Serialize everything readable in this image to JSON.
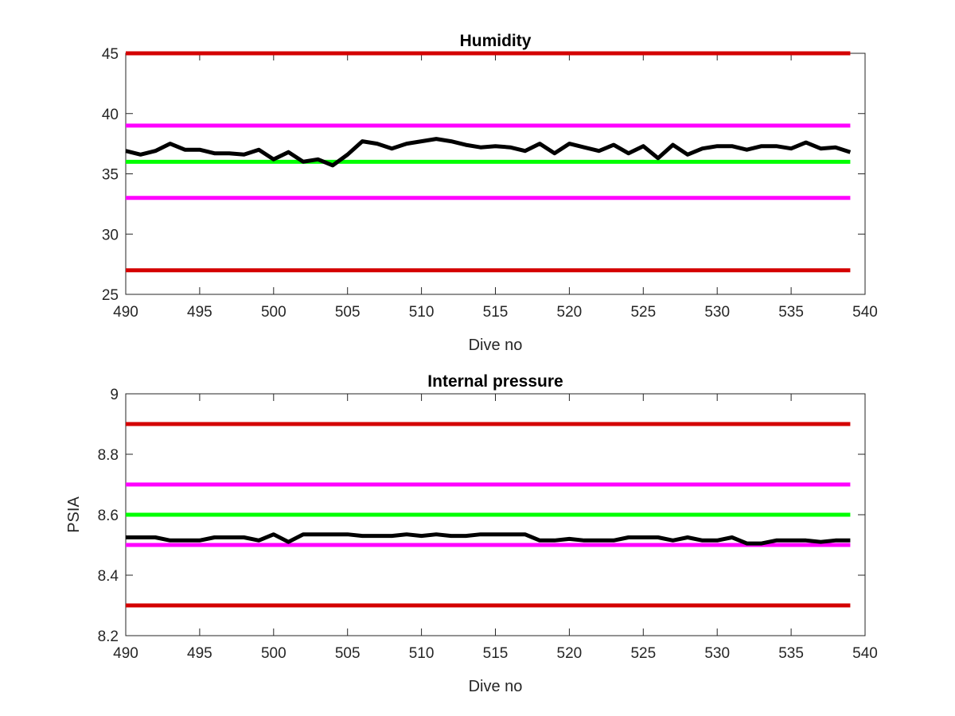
{
  "chart_data": [
    {
      "type": "line",
      "title": "Humidity",
      "xlabel": "Dive no",
      "ylabel": "",
      "xlim": [
        490,
        540
      ],
      "ylim": [
        25,
        45
      ],
      "xticks": [
        "490",
        "495",
        "500",
        "505",
        "510",
        "515",
        "520",
        "525",
        "530",
        "535",
        "540"
      ],
      "yticks": [
        "25",
        "30",
        "35",
        "40",
        "45"
      ],
      "grid": false,
      "reference_lines": [
        {
          "y": 45,
          "color": "#d40000"
        },
        {
          "y": 39,
          "color": "#ff00ff"
        },
        {
          "y": 36,
          "color": "#00ff00"
        },
        {
          "y": 33,
          "color": "#ff00ff"
        },
        {
          "y": 27,
          "color": "#d40000"
        }
      ],
      "series": [
        {
          "color": "#000000",
          "x": [
            490,
            491,
            492,
            493,
            494,
            495,
            496,
            497,
            498,
            499,
            500,
            501,
            502,
            503,
            504,
            505,
            506,
            507,
            508,
            509,
            510,
            511,
            512,
            513,
            514,
            515,
            516,
            517,
            518,
            519,
            520,
            521,
            522,
            523,
            524,
            525,
            526,
            527,
            528,
            529,
            530,
            531,
            532,
            533,
            534,
            535,
            536,
            537,
            538,
            539
          ],
          "values": [
            36.9,
            36.6,
            36.9,
            37.5,
            37.0,
            37.0,
            36.7,
            36.7,
            36.6,
            37.0,
            36.2,
            36.8,
            36.0,
            36.2,
            35.7,
            36.6,
            37.7,
            37.5,
            37.1,
            37.5,
            37.7,
            37.9,
            37.7,
            37.4,
            37.2,
            37.3,
            37.2,
            36.9,
            37.5,
            36.7,
            37.5,
            37.2,
            36.9,
            37.4,
            36.7,
            37.3,
            36.3,
            37.4,
            36.6,
            37.1,
            37.3,
            37.3,
            37.0,
            37.3,
            37.3,
            37.1,
            37.6,
            37.1,
            37.2,
            36.8
          ]
        }
      ]
    },
    {
      "type": "line",
      "title": "Internal pressure",
      "xlabel": "Dive no",
      "ylabel": "PSIA",
      "xlim": [
        490,
        540
      ],
      "ylim": [
        8.2,
        9
      ],
      "xticks": [
        "490",
        "495",
        "500",
        "505",
        "510",
        "515",
        "520",
        "525",
        "530",
        "535",
        "540"
      ],
      "yticks": [
        "8.2",
        "8.4",
        "8.6",
        "8.8",
        "9"
      ],
      "grid": false,
      "reference_lines": [
        {
          "y": 8.9,
          "color": "#d40000"
        },
        {
          "y": 8.7,
          "color": "#ff00ff"
        },
        {
          "y": 8.6,
          "color": "#00ff00"
        },
        {
          "y": 8.5,
          "color": "#ff00ff"
        },
        {
          "y": 8.3,
          "color": "#d40000"
        }
      ],
      "series": [
        {
          "color": "#000000",
          "x": [
            490,
            491,
            492,
            493,
            494,
            495,
            496,
            497,
            498,
            499,
            500,
            501,
            502,
            503,
            504,
            505,
            506,
            507,
            508,
            509,
            510,
            511,
            512,
            513,
            514,
            515,
            516,
            517,
            518,
            519,
            520,
            521,
            522,
            523,
            524,
            525,
            526,
            527,
            528,
            529,
            530,
            531,
            532,
            533,
            534,
            535,
            536,
            537,
            538,
            539
          ],
          "values": [
            8.525,
            8.525,
            8.525,
            8.515,
            8.515,
            8.515,
            8.525,
            8.525,
            8.525,
            8.515,
            8.535,
            8.51,
            8.535,
            8.535,
            8.535,
            8.535,
            8.53,
            8.53,
            8.53,
            8.535,
            8.53,
            8.535,
            8.53,
            8.53,
            8.535,
            8.535,
            8.535,
            8.535,
            8.515,
            8.515,
            8.52,
            8.515,
            8.515,
            8.515,
            8.525,
            8.525,
            8.525,
            8.515,
            8.525,
            8.515,
            8.515,
            8.525,
            8.505,
            8.505,
            8.515,
            8.515,
            8.515,
            8.51,
            8.515,
            8.515
          ]
        }
      ]
    }
  ]
}
